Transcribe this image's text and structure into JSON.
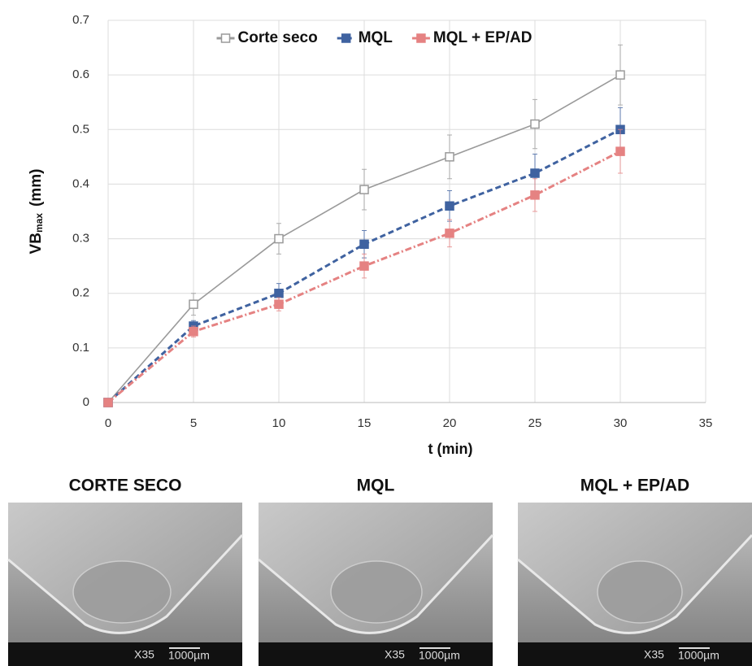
{
  "chart_data": {
    "type": "line",
    "x": [
      0,
      5,
      10,
      15,
      20,
      25,
      30
    ],
    "series": [
      {
        "name": "Corte seco",
        "color": "#9a9a9a",
        "dash": "solid",
        "values": [
          0,
          0.18,
          0.3,
          0.39,
          0.45,
          0.51,
          0.6
        ],
        "errors": [
          0,
          0.02,
          0.028,
          0.037,
          0.04,
          0.045,
          0.055
        ]
      },
      {
        "name": "MQL",
        "color": "#3f62a0",
        "dash": "dashed",
        "values": [
          0,
          0.14,
          0.2,
          0.29,
          0.36,
          0.42,
          0.5
        ],
        "errors": [
          0,
          0.01,
          0.018,
          0.025,
          0.028,
          0.035,
          0.04
        ]
      },
      {
        "name": "MQL + EP/AD",
        "color": "#e58282",
        "dash": "dashdot",
        "values": [
          0,
          0.13,
          0.18,
          0.25,
          0.31,
          0.38,
          0.46
        ],
        "errors": [
          0,
          0.01,
          0.012,
          0.022,
          0.025,
          0.03,
          0.04
        ]
      }
    ],
    "xlim": [
      0,
      35
    ],
    "xticks": [
      0,
      5,
      10,
      15,
      20,
      25,
      30,
      35
    ],
    "ylim": [
      0,
      0.7
    ],
    "yticks": [
      0,
      0.1,
      0.2,
      0.3,
      0.4,
      0.5,
      0.6,
      0.7
    ],
    "xlabel": "t (min)",
    "ylabel": "VB",
    "ylabel_sub": "max",
    "ylabel_unit": "(mm)",
    "grid": true,
    "legend": "top"
  },
  "panels": [
    {
      "title": "CORTE SECO",
      "magnification": "X35",
      "scale": "1000µm"
    },
    {
      "title": "MQL",
      "magnification": "X35",
      "scale": "1000µm"
    },
    {
      "title": "MQL + EP/AD",
      "magnification": "X35",
      "scale": "1000µm"
    }
  ]
}
